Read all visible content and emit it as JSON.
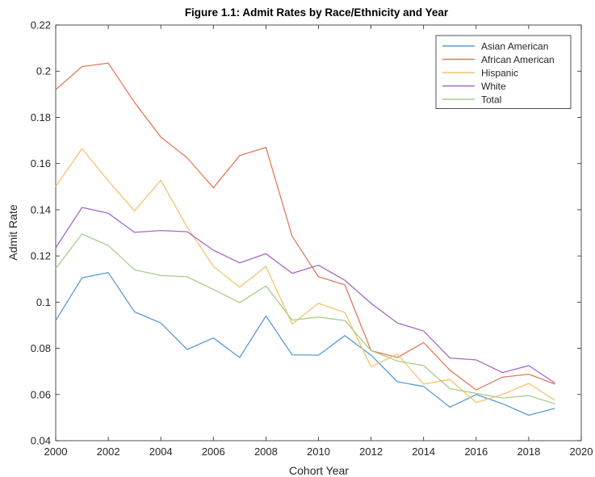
{
  "chart_data": {
    "type": "line",
    "title": "Figure 1.1: Admit Rates by Race/Ethnicity and Year",
    "xlabel": "Cohort Year",
    "ylabel": "Admit Rate",
    "xlim": [
      2000,
      2020
    ],
    "ylim": [
      0.04,
      0.22
    ],
    "xticks": [
      2000,
      2002,
      2004,
      2006,
      2008,
      2010,
      2012,
      2014,
      2016,
      2018,
      2020
    ],
    "yticks": [
      0.04,
      0.06,
      0.08,
      0.1,
      0.12,
      0.14,
      0.16,
      0.18,
      0.2,
      0.22
    ],
    "xtick_labels": [
      "2000",
      "2002",
      "2004",
      "2006",
      "2008",
      "2010",
      "2012",
      "2014",
      "2016",
      "2018",
      "2020"
    ],
    "ytick_labels": [
      "0.04",
      "0.06",
      "0.08",
      "0.1",
      "0.12",
      "0.14",
      "0.16",
      "0.18",
      "0.2",
      "0.22"
    ],
    "grid": false,
    "legend_position": "top-right",
    "x": [
      2000,
      2001,
      2002,
      2003,
      2004,
      2005,
      2006,
      2007,
      2008,
      2009,
      2010,
      2011,
      2012,
      2013,
      2014,
      2015,
      2016,
      2017,
      2018,
      2019
    ],
    "series": [
      {
        "name": "Asian American",
        "color": "#5b9bd5",
        "values": [
          0.092,
          0.1105,
          0.1128,
          0.0958,
          0.091,
          0.0795,
          0.0845,
          0.076,
          0.094,
          0.0772,
          0.077,
          0.0855,
          0.077,
          0.0655,
          0.0635,
          0.0545,
          0.06,
          0.056,
          0.051,
          0.054
        ]
      },
      {
        "name": "African American",
        "color": "#e07b5d",
        "values": [
          0.192,
          0.202,
          0.2035,
          0.1865,
          0.1715,
          0.1625,
          0.1495,
          0.1635,
          0.167,
          0.1285,
          0.111,
          0.1075,
          0.079,
          0.076,
          0.0825,
          0.0705,
          0.062,
          0.0675,
          0.0688,
          0.0645
        ]
      },
      {
        "name": "Hispanic",
        "color": "#f2c46f",
        "values": [
          0.15,
          0.1665,
          0.1525,
          0.1395,
          0.1528,
          0.1325,
          0.1155,
          0.1065,
          0.1155,
          0.0905,
          0.0995,
          0.0955,
          0.072,
          0.0775,
          0.0645,
          0.0665,
          0.0565,
          0.06,
          0.0648,
          0.0575
        ]
      },
      {
        "name": "White",
        "color": "#a569c4",
        "values": [
          0.1235,
          0.141,
          0.1385,
          0.1302,
          0.131,
          0.1305,
          0.1225,
          0.117,
          0.121,
          0.1125,
          0.116,
          0.1095,
          0.0995,
          0.091,
          0.0875,
          0.0758,
          0.075,
          0.0695,
          0.0725,
          0.065
        ]
      },
      {
        "name": "Total",
        "color": "#a9cd8a",
        "values": [
          0.1145,
          0.1295,
          0.1245,
          0.114,
          0.1115,
          0.111,
          0.1055,
          0.0998,
          0.107,
          0.0922,
          0.0935,
          0.092,
          0.079,
          0.0745,
          0.0725,
          0.0625,
          0.0605,
          0.0585,
          0.0595,
          0.056
        ]
      }
    ]
  }
}
